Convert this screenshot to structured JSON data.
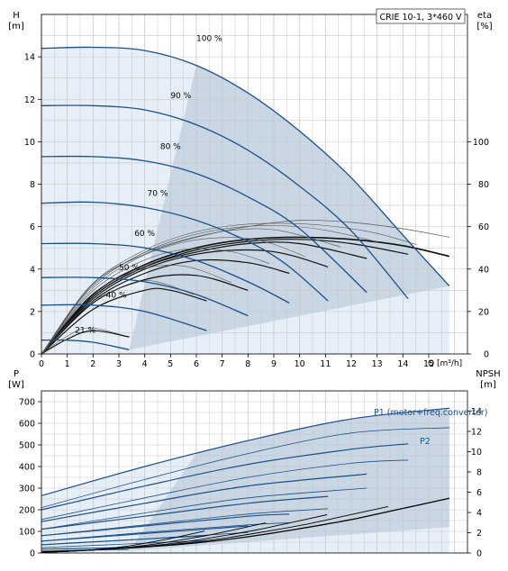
{
  "chart_data": [
    {
      "type": "line",
      "title": "",
      "legend_box": "CRIE 10-1, 3*460 V",
      "xlabel": "Q [m³/h]",
      "ylabel_left": "H",
      "ylabel_left_unit": "[m]",
      "ylabel_right": "eta",
      "ylabel_right_unit": "[%]",
      "xlim": [
        0,
        16.5
      ],
      "ylim_left": [
        0,
        16
      ],
      "ylim_right": [
        0,
        160
      ],
      "x_ticks": [
        0,
        1,
        2,
        3,
        4,
        5,
        6,
        7,
        8,
        9,
        10,
        11,
        12,
        13,
        14,
        15
      ],
      "y_ticks_left": [
        0,
        2,
        4,
        6,
        8,
        10,
        12,
        14
      ],
      "y_ticks_right": [
        0,
        20,
        40,
        60,
        80,
        100
      ],
      "grid": true,
      "head_curves": [
        {
          "label": "100 %",
          "speed": 1.0,
          "x": [
            0,
            2,
            4,
            6,
            8,
            10,
            12,
            14,
            15.8
          ],
          "y": [
            14.4,
            14.45,
            14.3,
            13.6,
            12.3,
            10.5,
            8.3,
            5.6,
            3.2
          ]
        },
        {
          "label": "90 %",
          "speed": 0.9,
          "x": [
            0,
            2,
            4,
            6,
            8,
            10,
            12,
            14.2
          ],
          "y": [
            11.7,
            11.7,
            11.5,
            10.8,
            9.6,
            7.9,
            5.8,
            2.6
          ]
        },
        {
          "label": "80 %",
          "speed": 0.8,
          "x": [
            0,
            2,
            4,
            6,
            8,
            10,
            12.6
          ],
          "y": [
            9.3,
            9.3,
            9.1,
            8.5,
            7.4,
            5.9,
            2.9
          ]
        },
        {
          "label": "70 %",
          "speed": 0.7,
          "x": [
            0,
            2,
            4,
            6,
            8,
            9.5,
            11.1
          ],
          "y": [
            7.1,
            7.15,
            6.9,
            6.3,
            5.3,
            4.2,
            2.5
          ]
        },
        {
          "label": "60 %",
          "speed": 0.6,
          "x": [
            0,
            2,
            4,
            6,
            8,
            9.6
          ],
          "y": [
            5.2,
            5.2,
            5.0,
            4.4,
            3.4,
            2.4
          ]
        },
        {
          "label": "50 %",
          "speed": 0.5,
          "x": [
            0,
            2,
            4,
            6,
            8
          ],
          "y": [
            3.6,
            3.6,
            3.4,
            2.8,
            1.8
          ]
        },
        {
          "label": "40 %",
          "speed": 0.4,
          "x": [
            0,
            2,
            4,
            6.4
          ],
          "y": [
            2.3,
            2.3,
            2.0,
            1.1
          ]
        },
        {
          "label": "21 %",
          "speed": 0.21,
          "x": [
            0,
            1,
            2,
            3.4
          ],
          "y": [
            0.65,
            0.65,
            0.55,
            0.2
          ]
        }
      ],
      "efficiency_curves": [
        {
          "speed": 1.0,
          "x": [
            0,
            2,
            4,
            6,
            8,
            10,
            12,
            14,
            15.8
          ],
          "eta": [
            0,
            28,
            42,
            50,
            54,
            55,
            54,
            51,
            46
          ]
        },
        {
          "speed": 0.9,
          "x": [
            0,
            2,
            4,
            6,
            8,
            10,
            12,
            14.2
          ],
          "eta": [
            0,
            27,
            41,
            49,
            53,
            54,
            52,
            47
          ]
        },
        {
          "speed": 0.8,
          "x": [
            0,
            2,
            4,
            6,
            8,
            10,
            12.6
          ],
          "eta": [
            0,
            27,
            41,
            48,
            52,
            52,
            45
          ]
        },
        {
          "speed": 0.7,
          "x": [
            0,
            2,
            4,
            6,
            8,
            9.5,
            11.1
          ],
          "eta": [
            0,
            26,
            40,
            47,
            49,
            47,
            41
          ]
        },
        {
          "speed": 0.6,
          "x": [
            0,
            2,
            4,
            6,
            8,
            9.6
          ],
          "eta": [
            0,
            25,
            38,
            44,
            43,
            38
          ]
        },
        {
          "speed": 0.5,
          "x": [
            0,
            2,
            4,
            6,
            8
          ],
          "eta": [
            0,
            24,
            35,
            37,
            30
          ]
        },
        {
          "speed": 0.4,
          "x": [
            0,
            2,
            4,
            5,
            6.4
          ],
          "eta": [
            0,
            21,
            30,
            30,
            25
          ]
        },
        {
          "speed": 0.21,
          "x": [
            0,
            1,
            2,
            3.4
          ],
          "eta": [
            0,
            7,
            11,
            8
          ]
        }
      ],
      "bep_curve_x": [
        0,
        2,
        4,
        6,
        8,
        10,
        12,
        14,
        15.8
      ],
      "bep_curve_eta": [
        0,
        33,
        47,
        55,
        60,
        63,
        62,
        59,
        55
      ]
    },
    {
      "type": "line",
      "title": "",
      "xlabel": "",
      "ylabel_left": "P",
      "ylabel_left_unit": "[W]",
      "ylabel_right": "NPSH",
      "ylabel_right_unit": "[m]",
      "xlim": [
        0,
        16.5
      ],
      "ylim_left": [
        0,
        750
      ],
      "ylim_right": [
        0,
        16
      ],
      "y_ticks_left": [
        0,
        100,
        200,
        300,
        400,
        500,
        600,
        700
      ],
      "y_ticks_right": [
        0,
        2,
        4,
        6,
        8,
        10,
        12,
        14
      ],
      "grid": true,
      "series_labels": [
        "P1 (motor+freq.converter)",
        "P2"
      ],
      "p1_curves": [
        {
          "speed": 1.0,
          "x": [
            0,
            4,
            8,
            12,
            15.8
          ],
          "y": [
            265,
            400,
            520,
            620,
            670
          ]
        },
        {
          "speed": 0.9,
          "x": [
            0,
            4,
            8,
            12,
            14.2
          ],
          "y": [
            200,
            310,
            410,
            480,
            505
          ]
        },
        {
          "speed": 0.8,
          "x": [
            0,
            4,
            8,
            12.6
          ],
          "y": [
            145,
            230,
            310,
            365
          ]
        },
        {
          "speed": 0.7,
          "x": [
            0,
            4,
            8,
            11.1
          ],
          "y": [
            110,
            170,
            230,
            262
          ]
        },
        {
          "speed": 0.6,
          "x": [
            0,
            4,
            8,
            9.6
          ],
          "y": [
            80,
            125,
            170,
            180
          ]
        },
        {
          "speed": 0.5,
          "x": [
            0,
            4,
            8
          ],
          "y": [
            55,
            90,
            125
          ]
        },
        {
          "speed": 0.4,
          "x": [
            0,
            3,
            6.4
          ],
          "y": [
            38,
            58,
            80
          ]
        },
        {
          "speed": 0.21,
          "x": [
            0,
            2,
            3.4
          ],
          "y": [
            18,
            22,
            26
          ]
        }
      ],
      "p2_curves": [
        {
          "speed": 1.0,
          "x": [
            0,
            4,
            8,
            12,
            15.8
          ],
          "y": [
            210,
            340,
            460,
            555,
            580
          ]
        },
        {
          "speed": 0.9,
          "x": [
            0,
            4,
            8,
            12,
            14.2
          ],
          "y": [
            155,
            255,
            350,
            415,
            430
          ]
        },
        {
          "speed": 0.8,
          "x": [
            0,
            4,
            8,
            12.6
          ],
          "y": [
            110,
            185,
            255,
            300
          ]
        },
        {
          "speed": 0.7,
          "x": [
            0,
            4,
            8,
            11.1
          ],
          "y": [
            80,
            130,
            180,
            205
          ]
        },
        {
          "speed": 0.6,
          "x": [
            0,
            4,
            8,
            9.6
          ],
          "y": [
            55,
            95,
            130,
            140
          ]
        },
        {
          "speed": 0.5,
          "x": [
            0,
            4,
            8
          ],
          "y": [
            38,
            65,
            95
          ]
        },
        {
          "speed": 0.4,
          "x": [
            0,
            3,
            6.4
          ],
          "y": [
            25,
            40,
            58
          ]
        },
        {
          "speed": 0.21,
          "x": [
            0,
            2,
            3.4
          ],
          "y": [
            10,
            14,
            16
          ]
        }
      ],
      "npsh_curve": {
        "x": [
          0,
          2,
          4,
          6,
          8,
          10,
          12,
          14,
          15.8
        ],
        "y": [
          0.1,
          0.3,
          0.6,
          1.0,
          1.6,
          2.4,
          3.3,
          4.4,
          5.4
        ]
      }
    }
  ],
  "colors": {
    "curve": "#1b4f8a",
    "npsh": "#000000",
    "efficiency": "#000000",
    "thin": "#555555",
    "region_fill": "#c9d6e3",
    "light_fill": "#e6eff8",
    "grid": "#c8c8c8"
  }
}
